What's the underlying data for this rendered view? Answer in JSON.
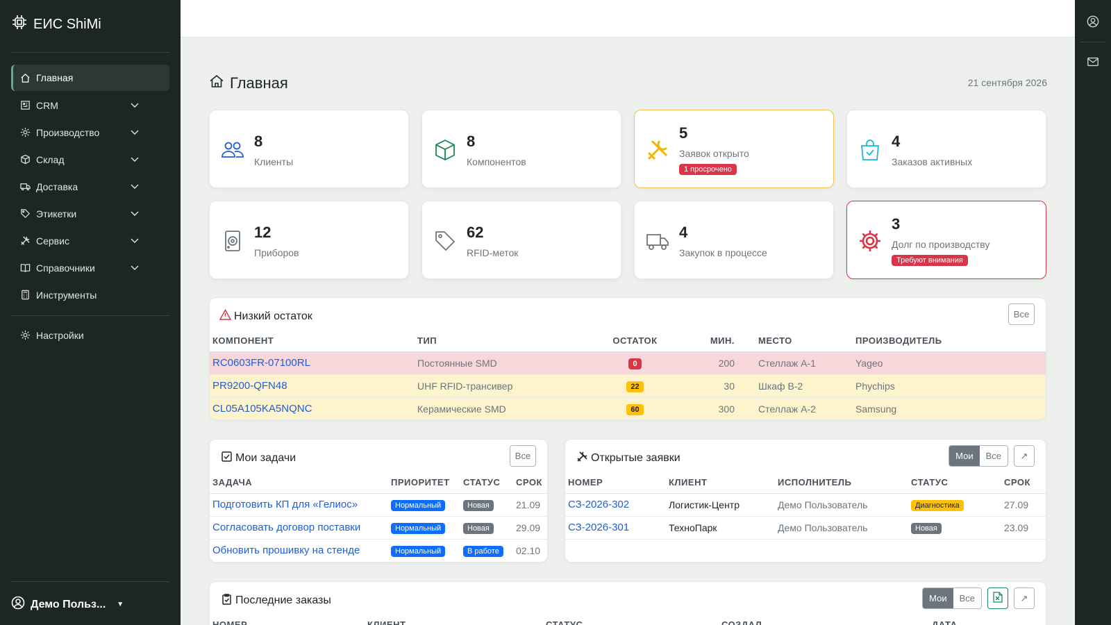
{
  "brand": {
    "name": "ЕИС ShiMi"
  },
  "sidebar": {
    "items": [
      {
        "label": "Главная",
        "icon": "home-icon"
      },
      {
        "label": "CRM",
        "icon": "crm-icon"
      },
      {
        "label": "Производство",
        "icon": "gear-icon"
      },
      {
        "label": "Склад",
        "icon": "box-icon"
      },
      {
        "label": "Доставка",
        "icon": "truck-icon"
      },
      {
        "label": "Этикетки",
        "icon": "tag-icon"
      },
      {
        "label": "Сервис",
        "icon": "tools-icon"
      },
      {
        "label": "Справочники",
        "icon": "book-icon"
      },
      {
        "label": "Инструменты",
        "icon": "calculator-icon"
      }
    ],
    "settings_label": "Настройки",
    "user_name": "Демо Польз..."
  },
  "header": {
    "title": "Главная",
    "date": "21 сентября 2026"
  },
  "stats": [
    {
      "number": "8",
      "label": "Клиенты"
    },
    {
      "number": "8",
      "label": "Компонентов"
    },
    {
      "number": "5",
      "label": "Заявок открыто",
      "badge": "1 просрочено"
    },
    {
      "number": "4",
      "label": "Заказов активных"
    },
    {
      "number": "12",
      "label": "Приборов"
    },
    {
      "number": "62",
      "label": "RFID-меток"
    },
    {
      "number": "4",
      "label": "Закупок в процессе"
    },
    {
      "number": "3",
      "label": "Долг по производству",
      "badge": "Требуют внимания"
    }
  ],
  "low_stock": {
    "title": "Низкий остаток",
    "all_label": "Все",
    "columns": [
      "КОМПОНЕНТ",
      "ТИП",
      "ОСТАТОК",
      "МИН.",
      "МЕСТО",
      "ПРОИЗВОДИТЕЛЬ"
    ],
    "rows": [
      {
        "component": "RC0603FR-07100RL",
        "type": "Постоянные SMD",
        "stock": "0",
        "min": "200",
        "place": "Стеллаж А-1",
        "maker": "Yageo"
      },
      {
        "component": "PR9200-QFN48",
        "type": "UHF RFID-трансивер",
        "stock": "22",
        "min": "30",
        "place": "Шкаф В-2",
        "maker": "Phychips"
      },
      {
        "component": "CL05A105KA5NQNC",
        "type": "Керамические SMD",
        "stock": "60",
        "min": "300",
        "place": "Стеллаж А-2",
        "maker": "Samsung"
      }
    ]
  },
  "tasks": {
    "title": "Мои задачи",
    "all_label": "Все",
    "columns": [
      "ЗАДАЧА",
      "ПРИОРИТЕТ",
      "СТАТУС",
      "СРОК"
    ],
    "rows": [
      {
        "task": "Подготовить КП для «Гелиос»",
        "priority": "Нормальный",
        "status": "Новая",
        "due": "21.09"
      },
      {
        "task": "Согласовать договор поставки",
        "priority": "Нормальный",
        "status": "Новая",
        "due": "29.09"
      },
      {
        "task": "Обновить прошивку на стенде",
        "priority": "Нормальный",
        "status": "В работе",
        "due": "02.10"
      }
    ]
  },
  "requests": {
    "title": "Открытые заявки",
    "my_label": "Мои",
    "all_label": "Все",
    "columns": [
      "НОМЕР",
      "КЛИЕНТ",
      "ИСПОЛНИТЕЛЬ",
      "СТАТУС",
      "СРОК"
    ],
    "rows": [
      {
        "number": "СЗ-2026-302",
        "client": "Логистик-Центр",
        "assignee": "Демо Пользователь",
        "status": "Диагностика",
        "due": "27.09"
      },
      {
        "number": "СЗ-2026-301",
        "client": "ТехноПарк",
        "assignee": "Демо Пользователь",
        "status": "Новая",
        "due": "23.09"
      }
    ]
  },
  "orders": {
    "title": "Последние заказы",
    "my_label": "Мои",
    "all_label": "Все",
    "columns": [
      "НОМЕР",
      "КЛИЕНТ",
      "СТАТУС",
      "СОЗДАЛ",
      "ДАТА"
    ]
  },
  "colors": {
    "sidebar_bg": "#1c2623",
    "accent": "#6ea58c",
    "link": "#1f5fd1",
    "danger": "#d8354a",
    "warning": "#f2c14e"
  }
}
